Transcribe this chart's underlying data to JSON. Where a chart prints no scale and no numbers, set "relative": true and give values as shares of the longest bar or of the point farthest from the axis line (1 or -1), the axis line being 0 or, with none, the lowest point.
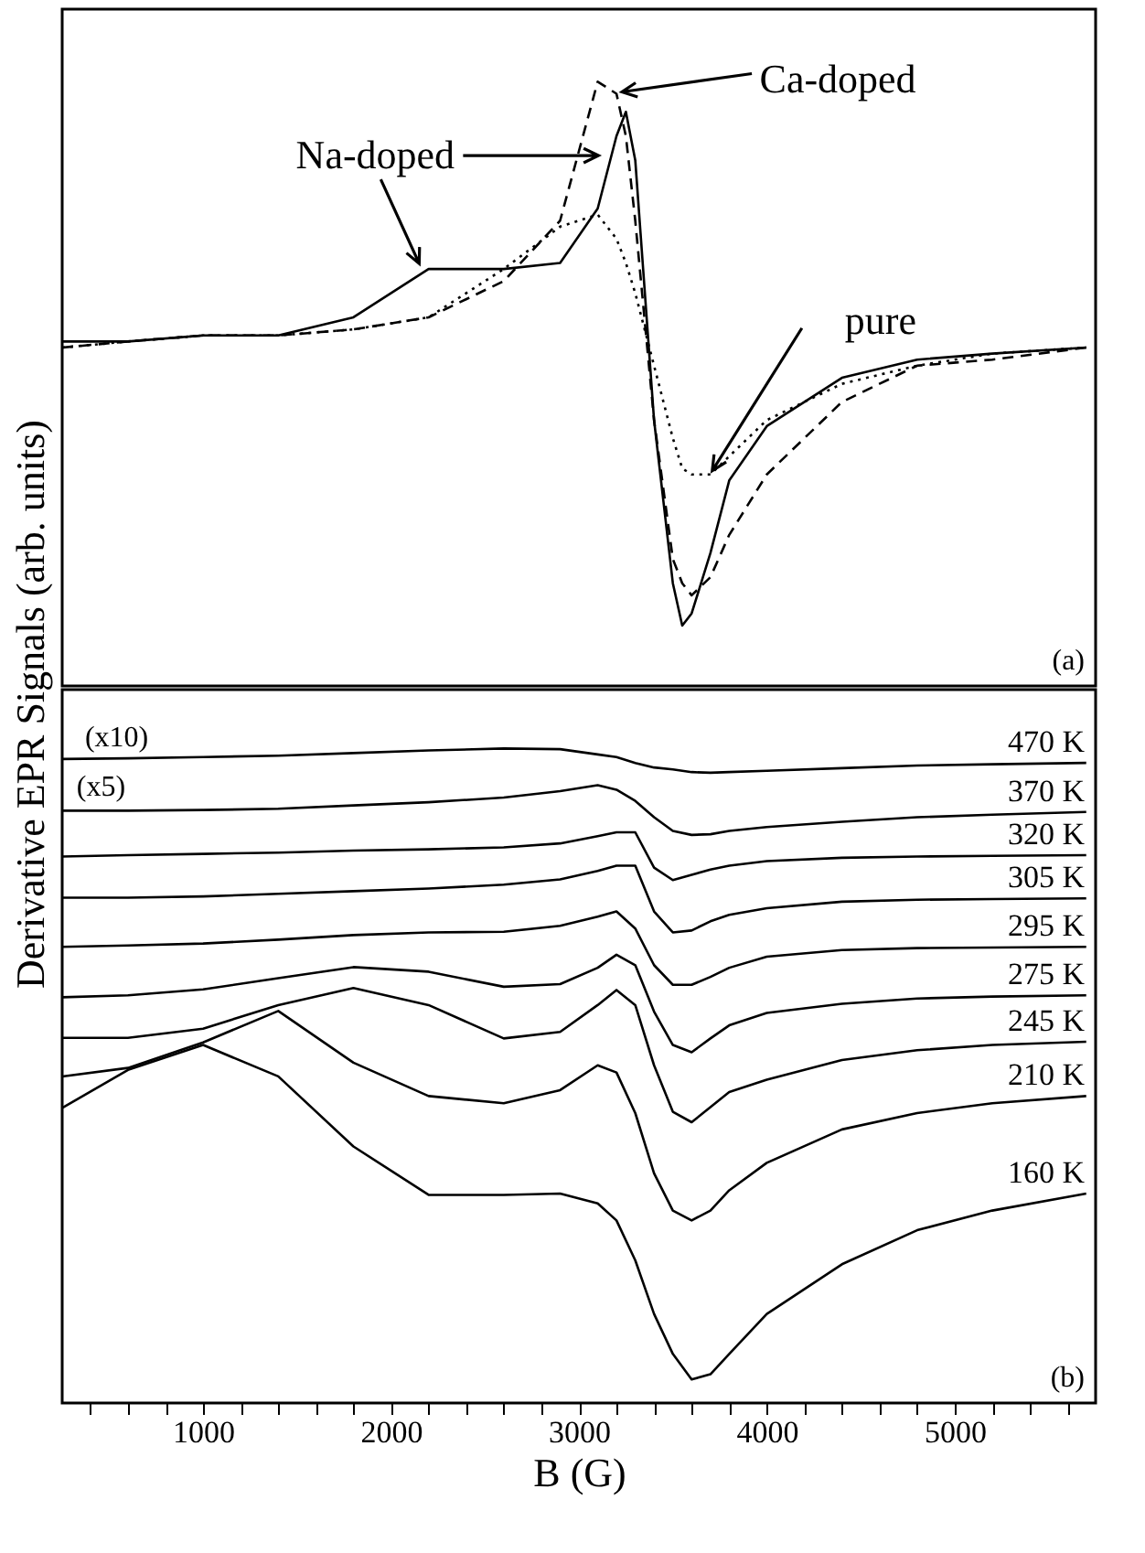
{
  "chart_data": [
    {
      "type": "line",
      "relative": true,
      "ylabel": "Derivative EPR Signals (arb. units)",
      "xlim": [
        250,
        5750
      ],
      "tick_labels": false,
      "x": [
        250,
        600,
        1000,
        1400,
        1800,
        2200,
        2600,
        2900,
        3100,
        3200,
        3250,
        3300,
        3400,
        3500,
        3550,
        3600,
        3700,
        3800,
        4000,
        4400,
        4800,
        5200,
        5700
      ],
      "series": [
        {
          "color": "#000000",
          "line_style": "solid",
          "values": [
            0.57,
            0.57,
            0.58,
            0.58,
            0.61,
            0.69,
            0.69,
            0.7,
            0.79,
            0.91,
            0.95,
            0.87,
            0.44,
            0.17,
            0.1,
            0.12,
            0.22,
            0.34,
            0.43,
            0.51,
            0.54,
            0.55,
            0.56
          ]
        },
        {
          "color": "#000000",
          "line_style": "dashed",
          "values": [
            0.56,
            0.57,
            0.58,
            0.58,
            0.59,
            0.61,
            0.67,
            0.77,
            1.0,
            0.98,
            0.91,
            0.77,
            0.44,
            0.21,
            0.17,
            0.15,
            0.18,
            0.25,
            0.35,
            0.47,
            0.53,
            0.54,
            0.56
          ]
        },
        {
          "color": "#000000",
          "line_style": "dotted",
          "values": [
            0.56,
            0.57,
            0.58,
            0.58,
            0.59,
            0.61,
            0.69,
            0.76,
            0.78,
            0.74,
            0.7,
            0.65,
            0.53,
            0.41,
            0.36,
            0.35,
            0.35,
            0.38,
            0.44,
            0.5,
            0.53,
            0.55,
            0.56
          ]
        }
      ],
      "annotations": [
        {
          "text": "Na-doped",
          "x": 2150,
          "y": 0.69
        },
        {
          "text": "Ca-doped",
          "x": 3200,
          "y": 0.98
        },
        {
          "text": "pure",
          "x": 3700,
          "y": 0.35
        },
        "(a)"
      ]
    },
    {
      "type": "line",
      "relative": true,
      "xlabel": "B (G)",
      "xlim": [
        250,
        5750
      ],
      "tick_labels": "x",
      "xticks": [
        {
          "value": 400,
          "label": null
        },
        {
          "value": 600,
          "label": null
        },
        {
          "value": 800,
          "label": null
        },
        1000,
        {
          "value": 1200,
          "label": null
        },
        {
          "value": 1400,
          "label": null
        },
        {
          "value": 1600,
          "label": null
        },
        {
          "value": 1800,
          "label": null
        },
        2000,
        {
          "value": 2200,
          "label": null
        },
        {
          "value": 2400,
          "label": null
        },
        {
          "value": 2600,
          "label": null
        },
        {
          "value": 2800,
          "label": null
        },
        3000,
        {
          "value": 3200,
          "label": null
        },
        {
          "value": 3400,
          "label": null
        },
        {
          "value": 3600,
          "label": null
        },
        {
          "value": 3800,
          "label": null
        },
        4000,
        {
          "value": 4200,
          "label": null
        },
        {
          "value": 4400,
          "label": null
        },
        {
          "value": 4600,
          "label": null
        },
        {
          "value": 4800,
          "label": null
        },
        5000,
        {
          "value": 5200,
          "label": null
        },
        {
          "value": 5400,
          "label": null
        },
        {
          "value": 5600,
          "label": null
        }
      ],
      "x": [
        250,
        600,
        1000,
        1400,
        1800,
        2200,
        2600,
        2900,
        3100,
        3200,
        3300,
        3400,
        3500,
        3600,
        3700,
        3800,
        4000,
        4400,
        4800,
        5200,
        5700
      ],
      "series": [
        {
          "name": "470 K",
          "color": "#000000",
          "values": [
            0.984,
            0.985,
            0.987,
            0.989,
            0.993,
            0.997,
            1.0,
            0.999,
            0.991,
            0.987,
            0.978,
            0.971,
            0.968,
            0.964,
            0.963,
            0.964,
            0.966,
            0.97,
            0.974,
            0.976,
            0.978
          ]
        },
        {
          "name": "370 K",
          "color": "#000000",
          "values": [
            0.905,
            0.905,
            0.906,
            0.908,
            0.913,
            0.918,
            0.925,
            0.935,
            0.944,
            0.937,
            0.92,
            0.895,
            0.874,
            0.868,
            0.869,
            0.874,
            0.88,
            0.888,
            0.895,
            0.899,
            0.903
          ]
        },
        {
          "name": "320 K",
          "color": "#000000",
          "values": [
            0.835,
            0.837,
            0.839,
            0.841,
            0.844,
            0.846,
            0.849,
            0.855,
            0.866,
            0.872,
            0.872,
            0.818,
            0.799,
            0.807,
            0.815,
            0.821,
            0.828,
            0.833,
            0.835,
            0.836,
            0.837
          ]
        },
        {
          "name": "305 K",
          "color": "#000000",
          "values": [
            0.772,
            0.772,
            0.774,
            0.778,
            0.782,
            0.786,
            0.792,
            0.8,
            0.813,
            0.821,
            0.821,
            0.751,
            0.719,
            0.722,
            0.736,
            0.746,
            0.756,
            0.766,
            0.769,
            0.77,
            0.771
          ]
        },
        {
          "name": "295 K",
          "color": "#000000",
          "values": [
            0.697,
            0.699,
            0.702,
            0.708,
            0.715,
            0.719,
            0.72,
            0.729,
            0.743,
            0.751,
            0.725,
            0.669,
            0.639,
            0.639,
            0.651,
            0.665,
            0.682,
            0.692,
            0.695,
            0.696,
            0.697
          ]
        },
        {
          "name": "275 K",
          "color": "#000000",
          "values": [
            0.62,
            0.623,
            0.632,
            0.649,
            0.666,
            0.659,
            0.636,
            0.64,
            0.665,
            0.685,
            0.669,
            0.598,
            0.547,
            0.536,
            0.557,
            0.577,
            0.596,
            0.61,
            0.618,
            0.621,
            0.623
          ]
        },
        {
          "name": "245 K",
          "color": "#000000",
          "values": [
            0.558,
            0.558,
            0.572,
            0.608,
            0.634,
            0.608,
            0.557,
            0.567,
            0.608,
            0.631,
            0.608,
            0.516,
            0.445,
            0.429,
            0.452,
            0.475,
            0.494,
            0.524,
            0.539,
            0.547,
            0.552
          ]
        },
        {
          "name": "210 K",
          "color": "#000000",
          "values": [
            0.499,
            0.512,
            0.551,
            0.599,
            0.52,
            0.469,
            0.458,
            0.478,
            0.516,
            0.505,
            0.443,
            0.351,
            0.294,
            0.279,
            0.294,
            0.325,
            0.367,
            0.418,
            0.443,
            0.458,
            0.469
          ]
        },
        {
          "name": "160 K",
          "color": "#000000",
          "values": [
            0.451,
            0.509,
            0.547,
            0.499,
            0.392,
            0.318,
            0.318,
            0.32,
            0.305,
            0.279,
            0.218,
            0.136,
            0.075,
            0.036,
            0.044,
            0.075,
            0.136,
            0.212,
            0.264,
            0.294,
            0.32
          ]
        }
      ],
      "annotations": [
        {
          "text": "(x10)",
          "x": 540,
          "y": 0.984
        },
        {
          "text": "(x5)",
          "x": 505,
          "y": 0.905
        },
        "(b)"
      ]
    }
  ]
}
